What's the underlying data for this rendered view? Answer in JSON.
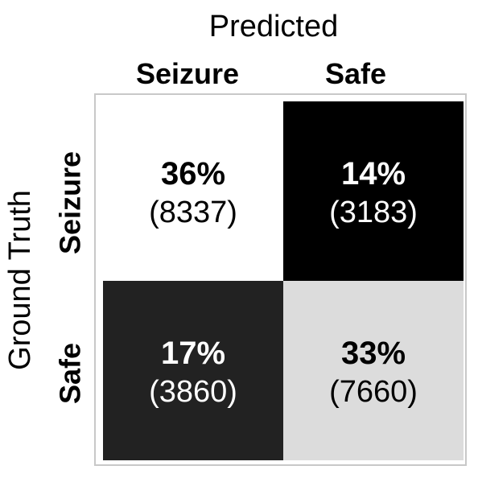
{
  "chart_data": {
    "type": "heatmap",
    "title": "Predicted",
    "ylabel": "Ground Truth",
    "columns": [
      "Seizure",
      "Safe"
    ],
    "rows": [
      "Seizure",
      "Safe"
    ],
    "cells": [
      [
        {
          "percent": "36%",
          "count": "(8337)",
          "value": 8337,
          "fill": "#ffffff",
          "text_color": "#000000"
        },
        {
          "percent": "14%",
          "count": "(3183)",
          "value": 3183,
          "fill": "#000000",
          "text_color": "#ffffff"
        }
      ],
      [
        {
          "percent": "17%",
          "count": "(3860)",
          "value": 3860,
          "fill": "#222222",
          "text_color": "#ffffff"
        },
        {
          "percent": "33%",
          "count": "(7660)",
          "value": 7660,
          "fill": "#dcdcdc",
          "text_color": "#000000"
        }
      ]
    ]
  }
}
